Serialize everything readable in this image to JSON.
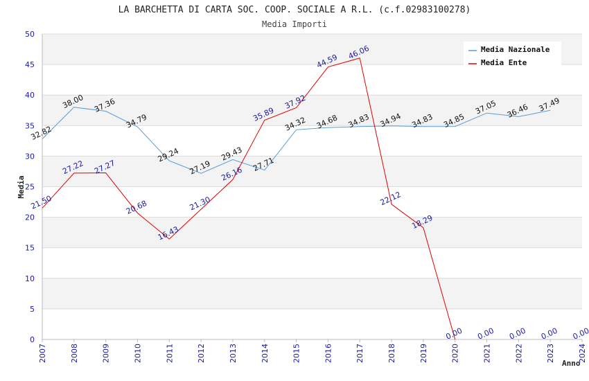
{
  "chart_data": {
    "type": "line",
    "title": "LA BARCHETTA DI CARTA SOC. COOP. SOCIALE A R.L. (c.f.02983100278)",
    "subtitle": "Media Importi",
    "xlabel": "Anno",
    "ylabel": "Media",
    "ylim": [
      0,
      50
    ],
    "yticks": [
      0,
      5,
      10,
      15,
      20,
      25,
      30,
      35,
      40,
      45,
      50
    ],
    "x": [
      "2007",
      "2008",
      "2009",
      "2010",
      "2011",
      "2012",
      "2013",
      "2014",
      "2015",
      "2016",
      "2017",
      "2018",
      "2019",
      "2020",
      "2021",
      "2022",
      "2023",
      "2024"
    ],
    "legend_position": "top-right",
    "series": [
      {
        "name": "Media Nazionale",
        "color": "#5b9bd5",
        "values": [
          32.82,
          38.0,
          37.36,
          34.79,
          29.24,
          27.19,
          29.43,
          27.71,
          34.32,
          34.68,
          34.83,
          34.94,
          34.83,
          34.85,
          37.05,
          36.46,
          37.49,
          null
        ],
        "labels": [
          "32.82",
          "38.00",
          "37.36",
          "34.79",
          "29.24",
          "27.19",
          "29.43",
          "27.71",
          "34.32",
          "34.68",
          "34.83",
          "34.94",
          "34.83",
          "34.85",
          "37.05",
          "36.46",
          "37.49",
          null
        ]
      },
      {
        "name": "Media Ente",
        "color": "#e00000",
        "values": [
          21.5,
          27.22,
          27.27,
          20.68,
          16.43,
          21.3,
          26.16,
          35.89,
          37.92,
          44.59,
          46.06,
          22.12,
          18.29,
          0.0,
          0.0,
          0.0,
          0.0,
          0.0
        ],
        "line_until_index": 13,
        "labels": [
          "21.50",
          "27.22",
          "27.27",
          "20.68",
          "16.43",
          "21.30",
          "26.16",
          "35.89",
          "37.92",
          "44.59",
          "46.06",
          "22.12",
          "18.29",
          "0.00",
          "0.00",
          "0.00",
          "0.00",
          "0.00"
        ]
      }
    ]
  }
}
